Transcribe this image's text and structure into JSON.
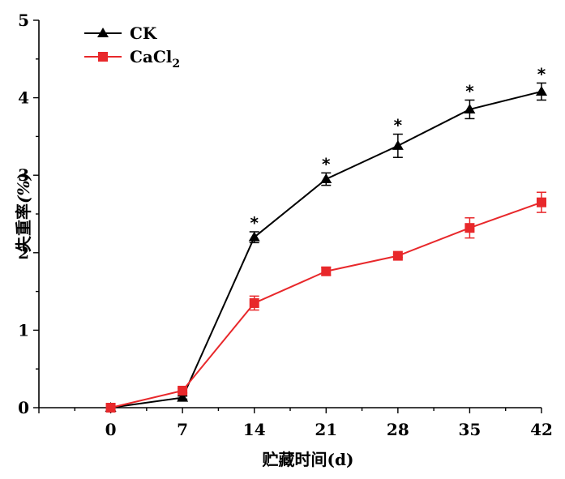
{
  "chart_data": {
    "type": "line",
    "xlabel_main": "贮藏时间",
    "xlabel_unit": "(d)",
    "ylabel_main": "失重率",
    "ylabel_unit": "(%)",
    "x": [
      0,
      7,
      14,
      21,
      28,
      35,
      42
    ],
    "x_tick_labels": [
      "0",
      "7",
      "14",
      "21",
      "28",
      "35",
      "42"
    ],
    "xlim": [
      -7,
      42
    ],
    "ylim": [
      0,
      5
    ],
    "y_ticks": [
      0,
      1,
      2,
      3,
      4,
      5
    ],
    "y_tick_labels": [
      "0",
      "1",
      "2",
      "3",
      "4",
      "5"
    ],
    "grid": false,
    "legend_position": "top-left",
    "series": [
      {
        "name": "CK",
        "legend_main": "CK",
        "legend_sub": "",
        "color": "#000000",
        "marker": "triangle",
        "values": [
          0.0,
          0.13,
          2.2,
          2.95,
          3.38,
          3.85,
          4.08
        ],
        "errors": [
          0.0,
          0.02,
          0.07,
          0.08,
          0.15,
          0.12,
          0.11
        ]
      },
      {
        "name": "CaCl2",
        "legend_main": "CaCl",
        "legend_sub": "2",
        "color": "#e8282b",
        "marker": "square",
        "values": [
          0.0,
          0.22,
          1.35,
          1.76,
          1.96,
          2.32,
          2.65
        ],
        "errors": [
          0.0,
          0.03,
          0.09,
          0.05,
          0.02,
          0.13,
          0.13
        ]
      }
    ],
    "significance_marker": "*",
    "significance_x": [
      14,
      21,
      28,
      35,
      42
    ]
  }
}
